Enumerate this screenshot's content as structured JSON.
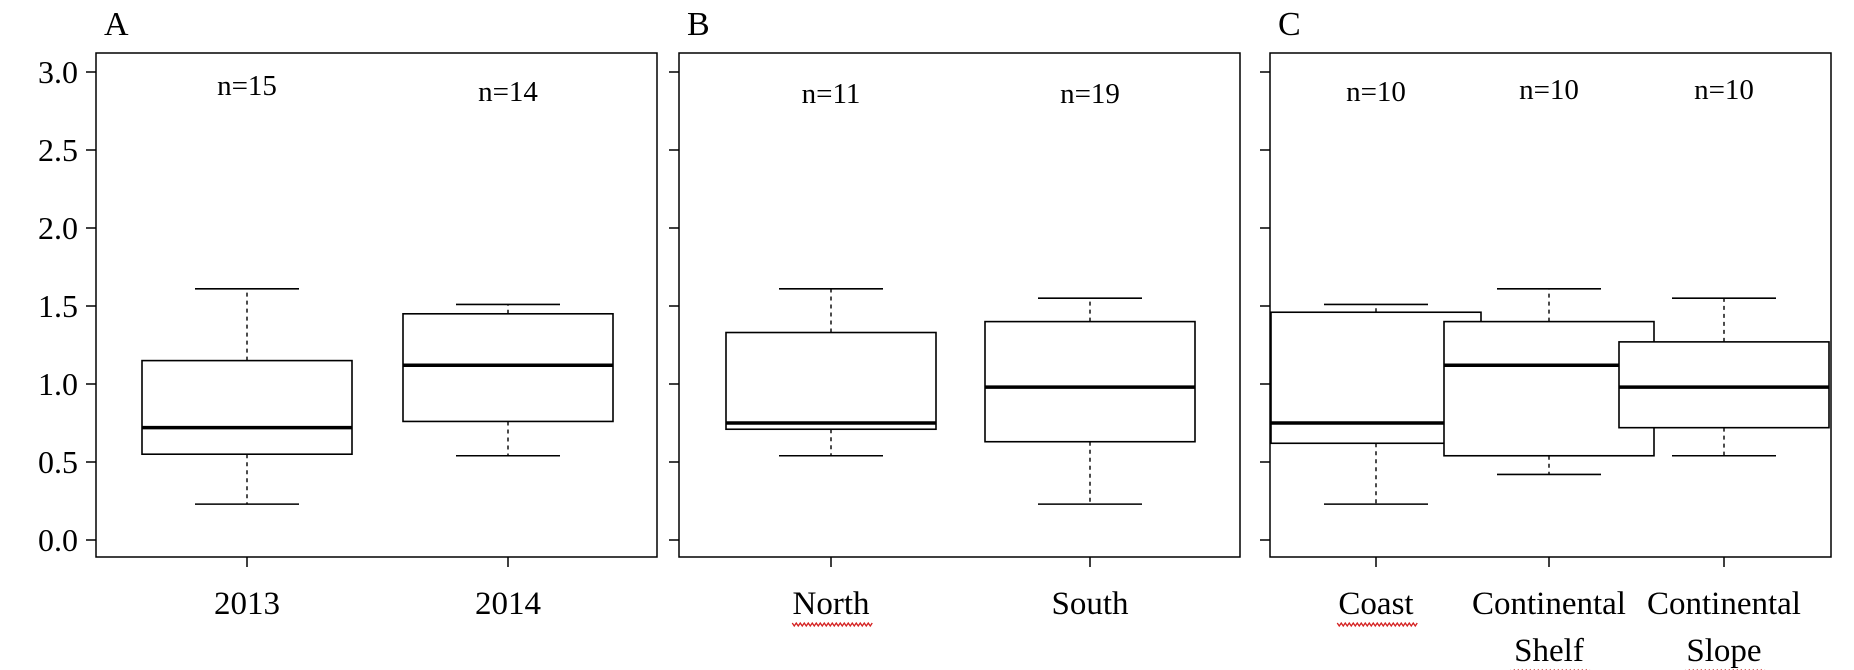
{
  "chart_data": [
    {
      "type": "box",
      "panel_label": "A",
      "ylim": [
        0,
        3.0
      ],
      "yticks": [
        "0.0",
        "0.5",
        "1.0",
        "1.5",
        "2.0",
        "2.5",
        "3.0"
      ],
      "categories": [
        {
          "label_lines": [
            "2013"
          ],
          "n_label": "n=15",
          "min": 0.23,
          "q1": 0.55,
          "median": 0.72,
          "q3": 1.15,
          "max": 1.61,
          "spell_flag": false
        },
        {
          "label_lines": [
            "2014"
          ],
          "n_label": "n=14",
          "min": 0.54,
          "q1": 0.76,
          "median": 1.12,
          "q3": 1.45,
          "max": 1.51,
          "spell_flag": false
        }
      ]
    },
    {
      "type": "box",
      "panel_label": "B",
      "ylim": [
        0,
        3.0
      ],
      "yticks": [
        "0.0",
        "0.5",
        "1.0",
        "1.5",
        "2.0",
        "2.5",
        "3.0"
      ],
      "categories": [
        {
          "label_lines": [
            "North"
          ],
          "n_label": "n=11",
          "min": 0.54,
          "q1": 0.71,
          "median": 0.75,
          "q3": 1.33,
          "max": 1.61,
          "spell_flag": true
        },
        {
          "label_lines": [
            "South"
          ],
          "n_label": "n=19",
          "min": 0.23,
          "q1": 0.63,
          "median": 0.98,
          "q3": 1.4,
          "max": 1.55,
          "spell_flag": false
        }
      ]
    },
    {
      "type": "box",
      "panel_label": "C",
      "ylim": [
        0,
        3.0
      ],
      "yticks": [
        "0.0",
        "0.5",
        "1.0",
        "1.5",
        "2.0",
        "2.5",
        "3.0"
      ],
      "categories": [
        {
          "label_lines": [
            "Coast"
          ],
          "n_label": "n=10",
          "min": 0.23,
          "q1": 0.62,
          "median": 0.75,
          "q3": 1.46,
          "max": 1.51,
          "spell_flag": true
        },
        {
          "label_lines": [
            "Continental",
            "Shelf"
          ],
          "n_label": "n=10",
          "min": 0.42,
          "q1": 0.54,
          "median": 1.12,
          "q3": 1.4,
          "max": 1.61,
          "spell_flag": true
        },
        {
          "label_lines": [
            "Continental",
            "Slope"
          ],
          "n_label": "n=10",
          "min": 0.54,
          "q1": 0.72,
          "median": 0.98,
          "q3": 1.27,
          "max": 1.55,
          "spell_flag": true
        }
      ]
    }
  ]
}
